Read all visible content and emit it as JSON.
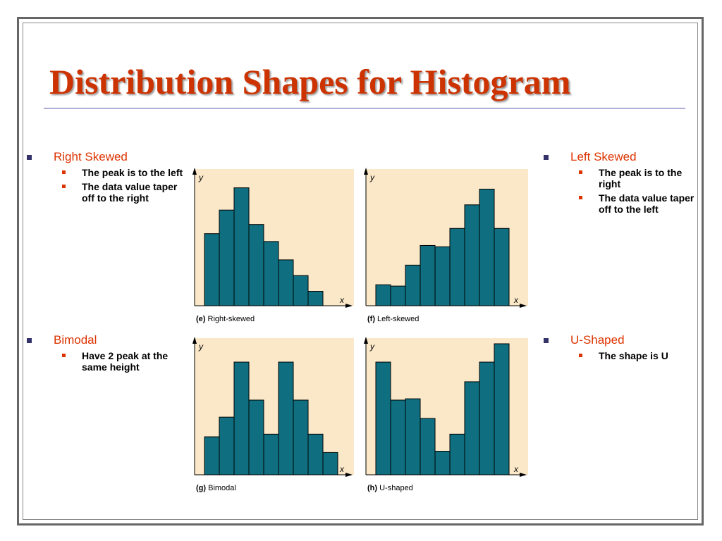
{
  "slide": {
    "title": "Distribution Shapes for Histogram",
    "colors": {
      "title": "#cc3300",
      "bullet_text": "#dd3300",
      "bar_fill": "#0f6f80",
      "plot_bg": "#fbe8c9"
    }
  },
  "bullets": [
    {
      "heading": "Right Skewed",
      "points": [
        "The peak is to the left",
        "The data value taper off to the right"
      ]
    },
    {
      "heading": "Left Skewed",
      "points": [
        "The peak is to the right",
        "The data value taper off to the left"
      ]
    },
    {
      "heading": "Bimodal",
      "points": [
        "Have 2 peak at the same height"
      ]
    },
    {
      "heading": "U-Shaped",
      "points": [
        "The shape is U"
      ]
    }
  ],
  "chart_data": [
    {
      "type": "bar",
      "letter": "(e)",
      "caption": "Right-skewed",
      "ylabel": "y",
      "xlabel": "x",
      "values": [
        0.55,
        0.73,
        0.9,
        0.62,
        0.49,
        0.35,
        0.23,
        0.11
      ],
      "ylim": [
        0,
        1
      ]
    },
    {
      "type": "bar",
      "letter": "(f)",
      "caption": "Left-skewed",
      "ylabel": "y",
      "xlabel": "x",
      "values": [
        0.16,
        0.15,
        0.31,
        0.46,
        0.45,
        0.59,
        0.77,
        0.89,
        0.59
      ],
      "ylim": [
        0,
        1
      ]
    },
    {
      "type": "bar",
      "letter": "(g)",
      "caption": "Bimodal",
      "ylabel": "y",
      "xlabel": "x",
      "values": [
        0.29,
        0.44,
        0.86,
        0.57,
        0.31,
        0.86,
        0.57,
        0.31,
        0.17
      ],
      "ylim": [
        0,
        1
      ]
    },
    {
      "type": "bar",
      "letter": "(h)",
      "caption": "U-shaped",
      "ylabel": "y",
      "xlabel": "x",
      "values": [
        0.86,
        0.57,
        0.58,
        0.43,
        0.18,
        0.31,
        0.71,
        0.86,
        1.0
      ],
      "ylim": [
        0,
        1
      ]
    }
  ]
}
